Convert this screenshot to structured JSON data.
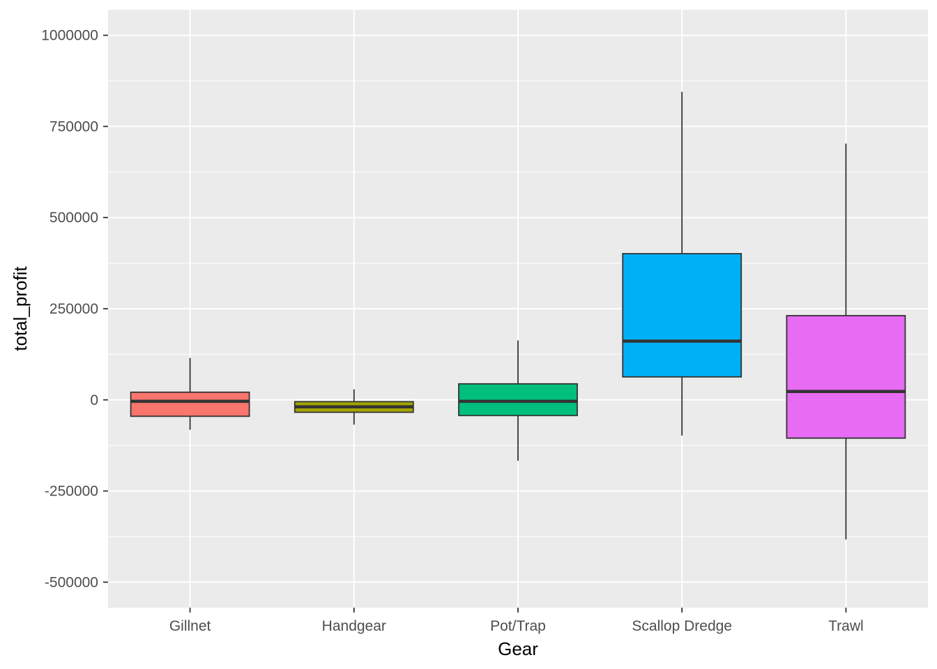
{
  "chart_data": {
    "type": "boxplot",
    "title": "",
    "xlabel": "Gear",
    "ylabel": "total_profit",
    "ylim": [
      -570000,
      1070000
    ],
    "yticks": [
      -500000,
      -250000,
      0,
      250000,
      500000,
      750000,
      1000000
    ],
    "ytick_labels": [
      "-500000",
      "-250000",
      "0",
      "250000",
      "500000",
      "750000",
      "1000000"
    ],
    "grid": true,
    "legend": "none",
    "panel_color": "#ebebeb",
    "categories": [
      "Gillnet",
      "Handgear",
      "Pot/Trap",
      "Scallop Dredge",
      "Trawl"
    ],
    "boxes": [
      {
        "category": "Gillnet",
        "color": "#f8766d",
        "whisker_low": -82000,
        "q1": -45000,
        "median": -4000,
        "q3": 21000,
        "whisker_high": 115000
      },
      {
        "category": "Handgear",
        "color": "#a3a500",
        "whisker_low": -68000,
        "q1": -34000,
        "median": -19000,
        "q3": -5000,
        "whisker_high": 29000
      },
      {
        "category": "Pot/Trap",
        "color": "#00bf7d",
        "whisker_low": -167000,
        "q1": -43000,
        "median": -4000,
        "q3": 44000,
        "whisker_high": 163000
      },
      {
        "category": "Scallop Dredge",
        "color": "#00b0f6",
        "whisker_low": -98000,
        "q1": 63000,
        "median": 161000,
        "q3": 401000,
        "whisker_high": 845000
      },
      {
        "category": "Trawl",
        "color": "#e76bf3",
        "whisker_low": -383000,
        "q1": -105000,
        "median": 23000,
        "q3": 231000,
        "whisker_high": 703000
      }
    ]
  }
}
